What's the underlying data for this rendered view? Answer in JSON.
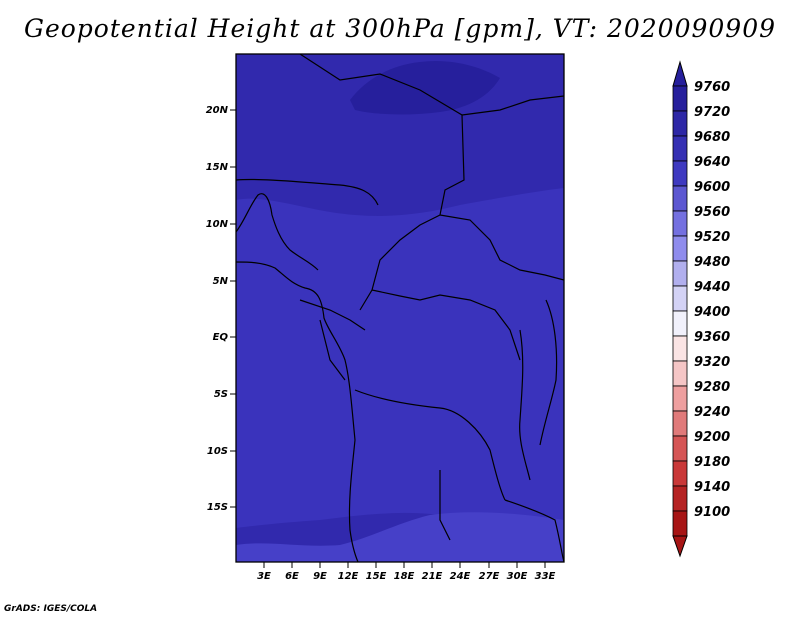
{
  "title": "Geopotential Height at 300hPa [gpm], VT: 2020090909",
  "footer": "GrADS: IGES/COLA",
  "lat_labels": [
    "20N",
    "15N",
    "10N",
    "5N",
    "EQ",
    "5S",
    "10S",
    "15S"
  ],
  "lon_labels": [
    "3E",
    "6E",
    "9E",
    "12E",
    "15E",
    "18E",
    "21E",
    "24E",
    "27E",
    "30E",
    "33E"
  ],
  "colorbar": {
    "labels": [
      "9760",
      "9720",
      "9680",
      "9640",
      "9600",
      "9560",
      "9520",
      "9480",
      "9440",
      "9400",
      "9360",
      "9320",
      "9280",
      "9240",
      "9200",
      "9180",
      "9140",
      "9100"
    ],
    "colors": [
      "#261f9c",
      "#2d27a6",
      "#3530b3",
      "#3e39c0",
      "#5c57d1",
      "#7470e0",
      "#8f8ced",
      "#b1afee",
      "#d3d2f5",
      "#f1f1fb",
      "#fae4e4",
      "#f5c6c6",
      "#ee9f9f",
      "#e07a7a",
      "#d55555",
      "#c93838",
      "#b52323",
      "#a71515"
    ]
  },
  "field_colors": {
    "highest": "#2b24a0",
    "high": "#3129ad",
    "mid": "#3a33bc",
    "low": "#4640c8"
  }
}
